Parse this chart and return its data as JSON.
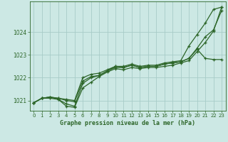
{
  "title": "Graphe pression niveau de la mer (hPa)",
  "background_color": "#cce8e4",
  "plot_bg_color": "#cce8e4",
  "grid_color": "#a8ccc8",
  "line_color": "#2d6629",
  "text_color": "#2d6629",
  "ylim": [
    1020.55,
    1025.35
  ],
  "xlim": [
    -0.5,
    23.5
  ],
  "yticks": [
    1021,
    1022,
    1023,
    1024
  ],
  "xticks": [
    0,
    1,
    2,
    3,
    4,
    5,
    6,
    7,
    8,
    9,
    10,
    11,
    12,
    13,
    14,
    15,
    16,
    17,
    18,
    19,
    20,
    21,
    22,
    23
  ],
  "series": [
    [
      1020.9,
      1021.1,
      1021.1,
      1021.05,
      1020.75,
      1020.7,
      1021.55,
      1021.8,
      1022.05,
      1022.25,
      1022.4,
      1022.35,
      1022.45,
      1022.4,
      1022.45,
      1022.45,
      1022.5,
      1022.55,
      1022.65,
      1022.75,
      1023.15,
      1023.55,
      1024.05,
      1025.1
    ],
    [
      1020.9,
      1021.1,
      1021.15,
      1021.05,
      1020.85,
      1020.75,
      1021.75,
      1022.0,
      1022.1,
      1022.3,
      1022.5,
      1022.45,
      1022.55,
      1022.45,
      1022.5,
      1022.5,
      1022.6,
      1022.65,
      1022.7,
      1022.85,
      1023.25,
      1022.85,
      1022.8,
      1022.8
    ],
    [
      1020.9,
      1021.1,
      1021.15,
      1021.1,
      1021.05,
      1021.0,
      1022.0,
      1022.15,
      1022.2,
      1022.35,
      1022.5,
      1022.5,
      1022.6,
      1022.5,
      1022.55,
      1022.55,
      1022.65,
      1022.7,
      1022.75,
      1023.4,
      1023.9,
      1024.4,
      1025.0,
      1025.1
    ],
    [
      1020.9,
      1021.1,
      1021.15,
      1021.1,
      1021.0,
      1020.95,
      1021.85,
      1022.05,
      1022.1,
      1022.3,
      1022.45,
      1022.45,
      1022.55,
      1022.45,
      1022.5,
      1022.5,
      1022.6,
      1022.65,
      1022.7,
      1022.85,
      1023.3,
      1023.8,
      1024.1,
      1024.95
    ]
  ]
}
